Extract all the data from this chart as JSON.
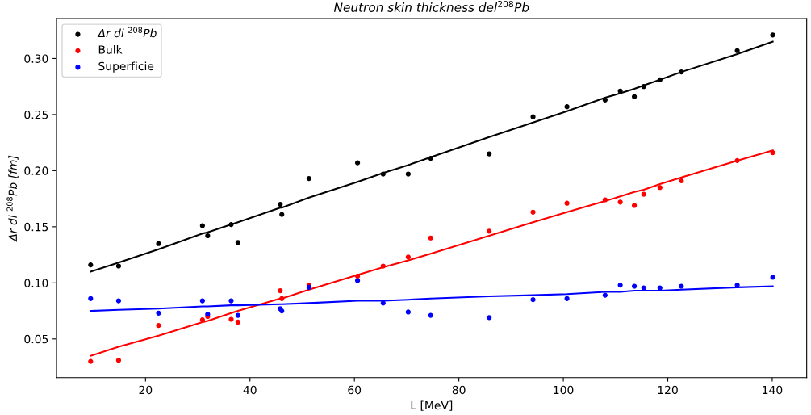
{
  "chart_data": {
    "type": "scatter",
    "title": "Neutron skin thickness del$^{208}$Pb",
    "xlabel": "L [MeV]",
    "ylabel": "Δr di $^{208}$Pb [fm]",
    "x": [
      9.49,
      14.84,
      22.5,
      30.9,
      31.9,
      36.4,
      37.7,
      45.8,
      46.1,
      51.3,
      60.6,
      65.5,
      70.3,
      74.6,
      85.8,
      94.2,
      100.7,
      108.0,
      110.9,
      113.6,
      115.4,
      118.5,
      122.6,
      133.3,
      140.1
    ],
    "series": [
      {
        "name": "Δr di $^{208}$Pb",
        "color": "#000000",
        "marker": "circle",
        "values": [
          0.116,
          0.115,
          0.135,
          0.151,
          0.142,
          0.152,
          0.136,
          0.17,
          0.161,
          0.193,
          0.207,
          0.197,
          0.197,
          0.211,
          0.215,
          0.248,
          0.257,
          0.263,
          0.271,
          0.266,
          0.275,
          0.281,
          0.288,
          0.307,
          0.321
        ]
      },
      {
        "name": "Bulk",
        "color": "#ff0000",
        "marker": "circle",
        "values": [
          0.03,
          0.031,
          0.062,
          0.067,
          0.07,
          0.0675,
          0.065,
          0.093,
          0.086,
          0.098,
          0.106,
          0.115,
          0.123,
          0.14,
          0.146,
          0.163,
          0.171,
          0.174,
          0.172,
          0.169,
          0.179,
          0.185,
          0.191,
          0.209,
          0.216
        ]
      },
      {
        "name": "Superficie",
        "color": "#0000ff",
        "marker": "circle",
        "values": [
          0.086,
          0.084,
          0.073,
          0.084,
          0.072,
          0.084,
          0.071,
          0.077,
          0.075,
          0.096,
          0.102,
          0.082,
          0.074,
          0.071,
          0.069,
          0.085,
          0.086,
          0.089,
          0.098,
          0.097,
          0.0955,
          0.0955,
          0.097,
          0.098,
          0.105
        ]
      },
      {
        "type": "line",
        "color": "#000000",
        "values": [
          0.11,
          0.118,
          0.13,
          0.144,
          0.145,
          0.152,
          0.154,
          0.167,
          0.167,
          0.176,
          0.19,
          0.198,
          0.205,
          0.212,
          0.23,
          0.243,
          0.253,
          0.265,
          0.269,
          0.273,
          0.276,
          0.281,
          0.288,
          0.304,
          0.315
        ]
      },
      {
        "type": "line",
        "color": "#ff0000",
        "values": [
          0.035,
          0.043,
          0.053,
          0.065,
          0.066,
          0.073,
          0.075,
          0.086,
          0.086,
          0.094,
          0.107,
          0.114,
          0.12,
          0.126,
          0.142,
          0.154,
          0.163,
          0.173,
          0.177,
          0.181,
          0.183,
          0.188,
          0.194,
          0.209,
          0.218
        ]
      },
      {
        "type": "line",
        "color": "#0000ff",
        "values": [
          0.075,
          0.076,
          0.077,
          0.079,
          0.079,
          0.08,
          0.08,
          0.081,
          0.081,
          0.082,
          0.084,
          0.084,
          0.085,
          0.086,
          0.088,
          0.089,
          0.09,
          0.092,
          0.092,
          0.093,
          0.093,
          0.093,
          0.094,
          0.096,
          0.097
        ]
      }
    ],
    "xlim": [
      2.96,
      146.6
    ],
    "ylim": [
      0.0155,
      0.3355
    ],
    "xticks": [
      20,
      40,
      60,
      80,
      100,
      120,
      140
    ],
    "yticks": [
      {
        "value": 0.05,
        "label": "0.05"
      },
      {
        "value": 0.1,
        "label": "0.10"
      },
      {
        "value": 0.15,
        "label": "0.15"
      },
      {
        "value": 0.2,
        "label": "0.20"
      },
      {
        "value": 0.25,
        "label": "0.25"
      },
      {
        "value": 0.3,
        "label": "0.30"
      }
    ],
    "legend": "top left",
    "line_style": "solid",
    "grid": false
  }
}
